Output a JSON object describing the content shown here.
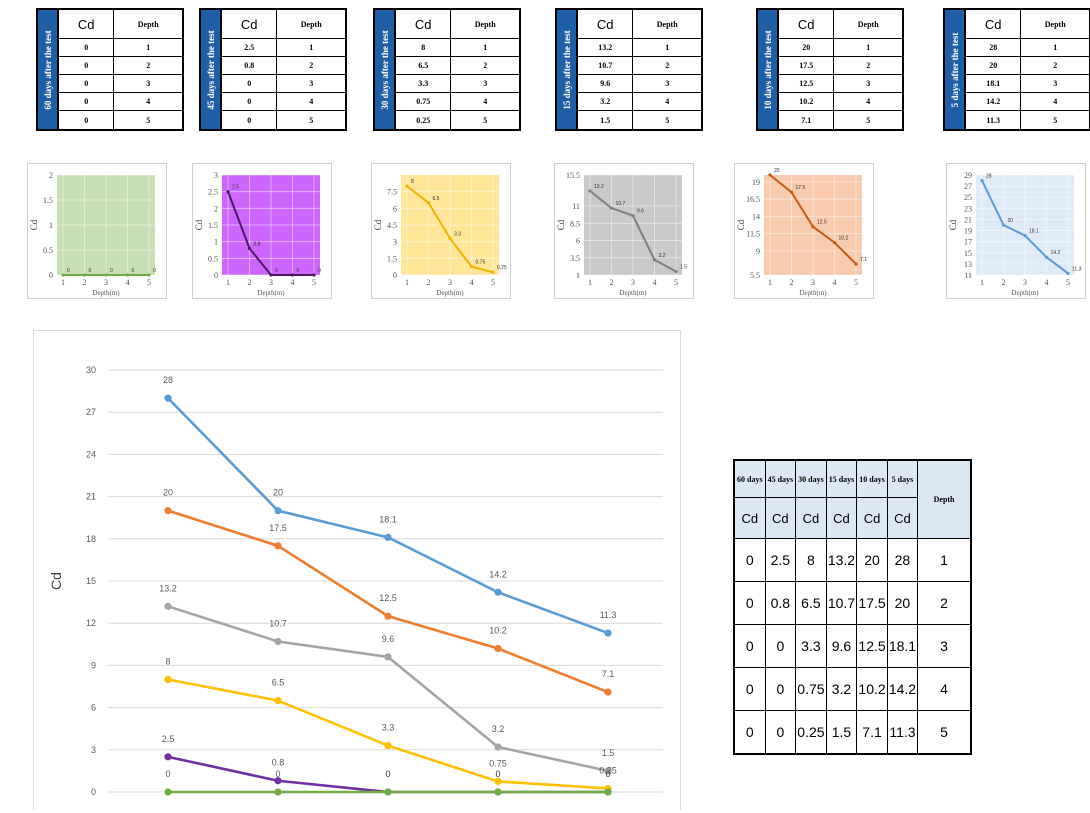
{
  "tables": [
    {
      "label": "60 days after the test",
      "rows": [
        [
          "0",
          "1"
        ],
        [
          "0",
          "2"
        ],
        [
          "0",
          "3"
        ],
        [
          "0",
          "4"
        ],
        [
          "0",
          "5"
        ]
      ]
    },
    {
      "label": "45 days after the test",
      "rows": [
        [
          "2.5",
          "1"
        ],
        [
          "0.8",
          "2"
        ],
        [
          "0",
          "3"
        ],
        [
          "0",
          "4"
        ],
        [
          "0",
          "5"
        ]
      ]
    },
    {
      "label": "30 days after the test",
      "rows": [
        [
          "8",
          "1"
        ],
        [
          "6.5",
          "2"
        ],
        [
          "3.3",
          "3"
        ],
        [
          "0.75",
          "4"
        ],
        [
          "0.25",
          "5"
        ]
      ]
    },
    {
      "label": "15 days after the test",
      "rows": [
        [
          "13.2",
          "1"
        ],
        [
          "10.7",
          "2"
        ],
        [
          "9.6",
          "3"
        ],
        [
          "3.2",
          "4"
        ],
        [
          "1.5",
          "5"
        ]
      ]
    },
    {
      "label": "10 days after the test",
      "rows": [
        [
          "20",
          "1"
        ],
        [
          "17.5",
          "2"
        ],
        [
          "12.5",
          "3"
        ],
        [
          "10.2",
          "4"
        ],
        [
          "7.1",
          "5"
        ]
      ]
    },
    {
      "label": "5 days after the test",
      "rows": [
        [
          "28",
          "1"
        ],
        [
          "20",
          "2"
        ],
        [
          "18.1",
          "3"
        ],
        [
          "14.2",
          "4"
        ],
        [
          "11.3",
          "5"
        ]
      ]
    }
  ],
  "table_headers": {
    "cd": "Cd",
    "depth": "Depth"
  },
  "chart_data": [
    {
      "type": "line",
      "x": [
        1,
        2,
        3,
        4,
        5
      ],
      "series": [
        {
          "values": [
            0,
            0,
            0,
            0,
            0
          ]
        }
      ],
      "ylim": [
        0,
        2
      ],
      "yticks": [
        "0",
        "0.5",
        "1",
        "1.5",
        "2"
      ],
      "xticks": [
        "1",
        "2",
        "3",
        "4",
        "5"
      ],
      "ylabel": "Cd",
      "xlabel": "Depth(m)",
      "background": "#c6e0b4",
      "line_color": "#70ad47"
    },
    {
      "type": "line",
      "x": [
        1,
        2,
        3,
        4,
        5
      ],
      "series": [
        {
          "values": [
            2.5,
            0.8,
            0,
            0,
            0
          ]
        }
      ],
      "ylim": [
        0,
        3
      ],
      "yticks": [
        "0",
        "0.5",
        "1",
        "1.5",
        "2",
        "2.5",
        "3"
      ],
      "xticks": [
        "1",
        "2",
        "3",
        "4",
        "5"
      ],
      "ylabel": "Cd",
      "xlabel": "Depth(m)",
      "background": "#cc66ff",
      "line_color": "#4b1a63"
    },
    {
      "type": "line",
      "x": [
        1,
        2,
        3,
        4,
        5
      ],
      "series": [
        {
          "values": [
            8,
            6.5,
            3.3,
            0.75,
            0.25
          ]
        }
      ],
      "ylim": [
        0,
        9
      ],
      "yticks": [
        "0",
        "1.5",
        "3",
        "4.5",
        "6",
        "7.5"
      ],
      "xticks": [
        "1",
        "2",
        "3",
        "4",
        "5"
      ],
      "ylabel": "Cd",
      "xlabel": "Depth(m)",
      "background": "#ffe699",
      "line_color": "#f0b400"
    },
    {
      "type": "line",
      "x": [
        1,
        2,
        3,
        4,
        5
      ],
      "series": [
        {
          "values": [
            13.2,
            10.7,
            9.6,
            3.2,
            1.5
          ]
        }
      ],
      "ylim": [
        1,
        15.5
      ],
      "yticks": [
        "1",
        "3.5",
        "6",
        "8.5",
        "11",
        "15.5"
      ],
      "xticks": [
        "1",
        "2",
        "3",
        "4",
        "5"
      ],
      "ylabel": "Cd",
      "xlabel": "Depth(m)",
      "background": "#c9c9c9",
      "line_color": "#808080"
    },
    {
      "type": "line",
      "x": [
        1,
        2,
        3,
        4,
        5
      ],
      "series": [
        {
          "values": [
            20,
            17.5,
            12.5,
            10.2,
            7.1
          ]
        }
      ],
      "ylim": [
        5.5,
        20
      ],
      "yticks": [
        "5.5",
        "9",
        "11.5",
        "14",
        "16.5",
        "19"
      ],
      "xticks": [
        "1",
        "2",
        "3",
        "4",
        "5"
      ],
      "ylabel": "Cd",
      "xlabel": "Depth(m)",
      "background": "#f8cbad",
      "line_color": "#c55a11"
    },
    {
      "type": "line",
      "x": [
        1,
        2,
        3,
        4,
        5
      ],
      "series": [
        {
          "values": [
            28,
            20,
            18.1,
            14.2,
            11.3
          ]
        }
      ],
      "ylim": [
        11,
        29
      ],
      "yticks": [
        "11",
        "13",
        "15",
        "17",
        "19",
        "21",
        "23",
        "25",
        "27",
        "29"
      ],
      "xticks": [
        "1",
        "2",
        "3",
        "4",
        "5"
      ],
      "ylabel": "Cd",
      "xlabel": "Depth(m)",
      "background": "#deebf7",
      "line_color": "#5b9bd5"
    },
    {
      "type": "line",
      "x": [
        1,
        2,
        3,
        4,
        5
      ],
      "series": [
        {
          "values": [
            28,
            20,
            18.1,
            14.2,
            11.3
          ],
          "color": "#5b9bd5"
        },
        {
          "values": [
            20,
            17.5,
            12.5,
            10.2,
            7.1
          ],
          "color": "#ed7d31"
        },
        {
          "values": [
            13.2,
            10.7,
            9.6,
            3.2,
            1.5
          ],
          "color": "#a5a5a5"
        },
        {
          "values": [
            8,
            6.5,
            3.3,
            0.75,
            0.25
          ],
          "color": "#ffc000"
        },
        {
          "values": [
            2.5,
            0.8,
            0,
            0,
            0
          ],
          "color": "#7030a0"
        },
        {
          "values": [
            0,
            0,
            0,
            0,
            0
          ],
          "color": "#70ad47"
        }
      ],
      "ylim": [
        0,
        30
      ],
      "yticks": [
        "0",
        "3",
        "6",
        "9",
        "12",
        "15",
        "18",
        "21",
        "24",
        "27",
        "30"
      ],
      "ylabel": "Cd"
    }
  ],
  "summary": {
    "headers": [
      "60 days",
      "45 days",
      "30 days",
      "15 days",
      "10 days",
      "5 days",
      "Depth"
    ],
    "cd_row": [
      "Cd",
      "Cd",
      "Cd",
      "Cd",
      "Cd",
      "Cd"
    ],
    "rows": [
      [
        "0",
        "2.5",
        "8",
        "13.2",
        "20",
        "28",
        "1"
      ],
      [
        "0",
        "0.8",
        "6.5",
        "10.7",
        "17.5",
        "20",
        "2"
      ],
      [
        "0",
        "0",
        "3.3",
        "9.6",
        "12.5",
        "18.1",
        "3"
      ],
      [
        "0",
        "0",
        "0.75",
        "3.2",
        "10.2",
        "14.2",
        "4"
      ],
      [
        "0",
        "0",
        "0.25",
        "1.5",
        "7.1",
        "11.3",
        "5"
      ]
    ]
  }
}
